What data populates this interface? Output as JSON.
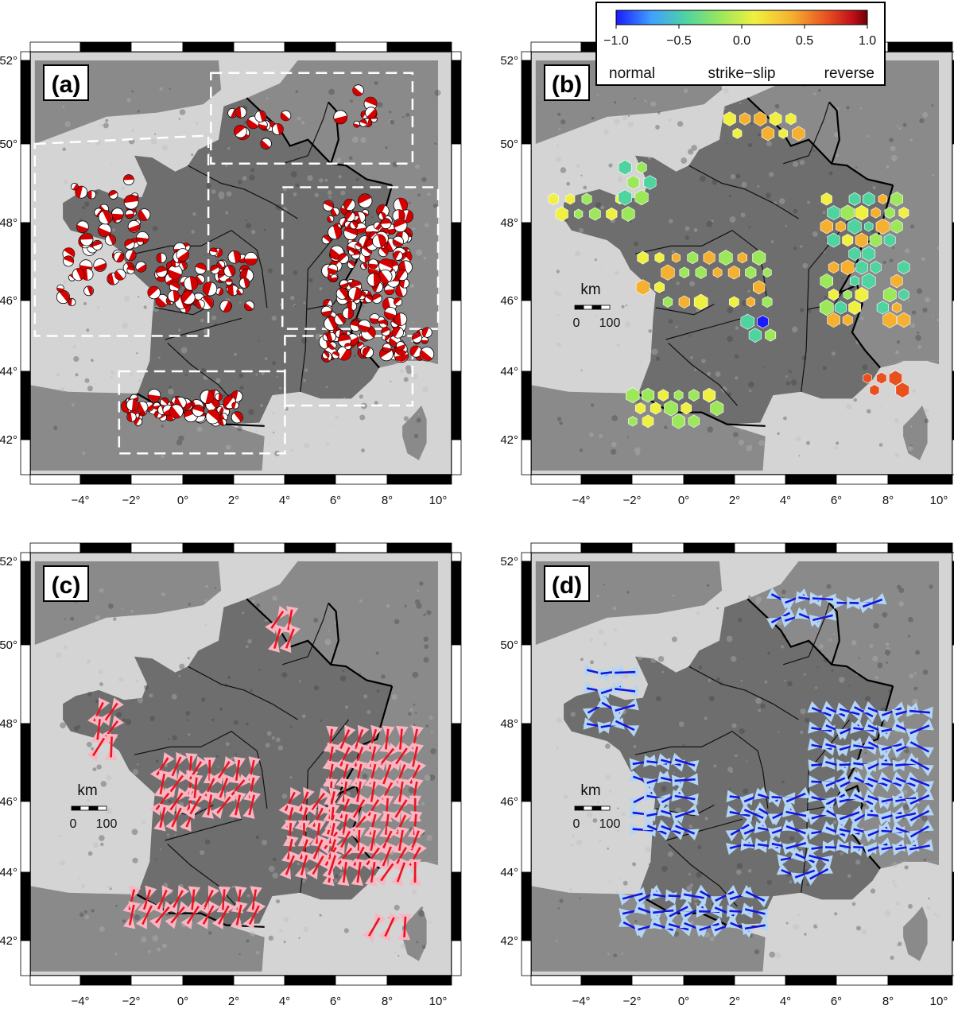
{
  "panels": [
    {
      "id": "a",
      "tag": "(a)"
    },
    {
      "id": "b",
      "tag": "(b)"
    },
    {
      "id": "c",
      "tag": "(c)"
    },
    {
      "id": "d",
      "tag": "(d)"
    }
  ],
  "lon_labels": [
    "−4°",
    "−2°",
    "0°",
    "2°",
    "4°",
    "6°",
    "8°",
    "10°"
  ],
  "lat_labels": [
    "52°",
    "50°",
    "48°",
    "46°",
    "44°",
    "42°"
  ],
  "colorbar": {
    "ticks": [
      "−1.0",
      "−0.5",
      "0.0",
      "0.5",
      "1.0"
    ],
    "left_label": "normal",
    "mid_label": "strike−slip",
    "right_label": "reverse",
    "colors": [
      "#1a1aff",
      "#3fa0ff",
      "#4fd4a0",
      "#9de85a",
      "#f0f040",
      "#f5b030",
      "#e85020",
      "#c0101a",
      "#700000"
    ]
  },
  "scalebar": {
    "unit": "km",
    "left": "0",
    "right": "100"
  },
  "colors": {
    "land": "#6e6e6e",
    "sea": "#d4d4d4",
    "foreign_land": "#8a8a8a",
    "beachball_fill": "#d40000",
    "stress_c": "#e8141e",
    "stress_c_fan": "#f7b6c2",
    "stress_d": "#1414e0",
    "stress_d_fan": "#b4d6f2",
    "zone_line": "#ffffff"
  },
  "icons": {
    "beachball": "focal-mechanism-icon",
    "hexagon": "hexagon-cell-icon"
  }
}
